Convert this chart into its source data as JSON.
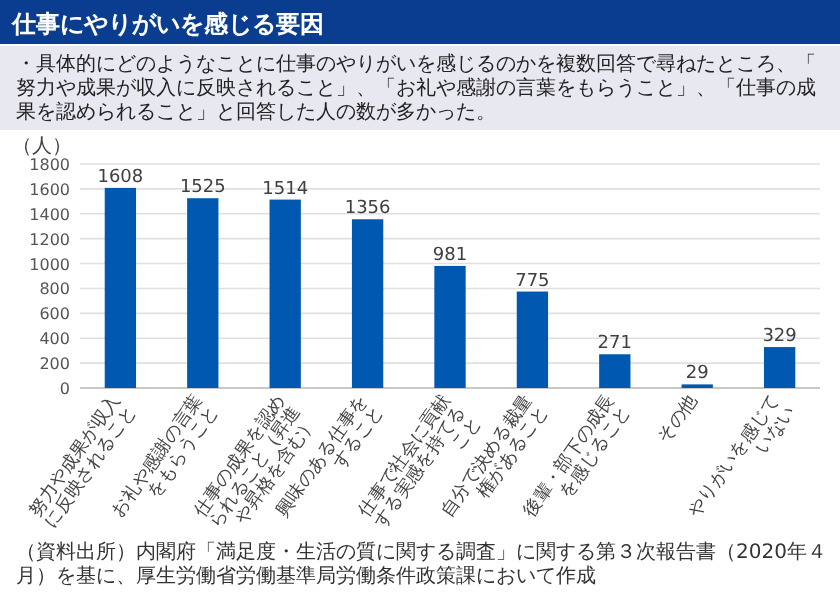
{
  "chart_data": {
    "type": "bar",
    "title": "仕事にやりがいを感じる要因",
    "subtitle": "・具体的にどのようなことに仕事のやりがいを感じるのかを複数回答で尋ねたところ、「努力や成果が収入に反映されること」、「お礼や感謝の言葉をもらうこと」、「仕事の成果を認められること」と回答した人の数が多かった。",
    "ylabel": "（人）",
    "categories": [
      "努力や成果が収入に反映されること",
      "お礼や感謝の言葉をもらうこと",
      "仕事の成果を認められること（昇進や昇格を含む）",
      "興味のある仕事をすること",
      "仕事で社会に貢献する実感を持てること",
      "自分で決める裁量権があること",
      "後輩・部下の成長を感じること",
      "その他",
      "やりがいを感じていない"
    ],
    "values": [
      1608,
      1525,
      1514,
      1356,
      981,
      775,
      271,
      29,
      329
    ],
    "color": "#0058b0",
    "ylim": [
      0,
      1800
    ],
    "yticks": [
      0,
      200,
      400,
      600,
      800,
      1000,
      1200,
      1400,
      1600,
      1800
    ],
    "grid": "y",
    "data_labels": true,
    "annotations": [
      "（資料出所）内閣府「満足度・生活の質に関する調査」に関する第３次報告書（2020年４月）を基に、厚生労働省労働基準局労働条件政策課において作成"
    ]
  }
}
